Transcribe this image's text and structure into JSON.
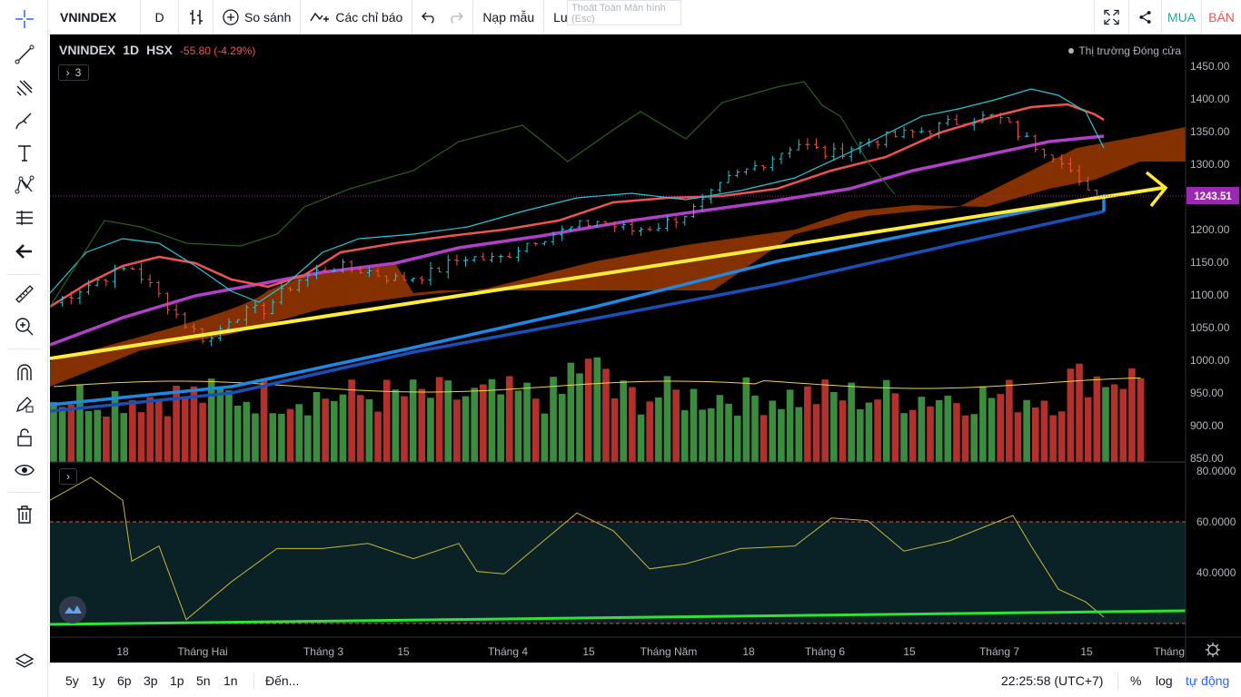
{
  "toolbar": {
    "symbol": "VNINDEX",
    "interval": "D",
    "compare": "So sánh",
    "indicators": "Các chỉ báo",
    "load_template": "Nạp mẫu",
    "save": "Lưu mẫu",
    "fullscreen_tip": "Thoát Toàn Màn hình",
    "fullscreen_tip_key": "(Esc)",
    "buy": "MUA",
    "sell": "BÁN"
  },
  "legend": {
    "symbol": "VNINDEX",
    "interval": "1D",
    "exchange": "HSX",
    "change": "-55.80 (-4.29%)",
    "collapse_count": "3",
    "market_status": "Thị trường Đóng cửa"
  },
  "price_axis": {
    "ticks": [
      "1450.00",
      "1400.00",
      "1350.00",
      "1300.00",
      "1250.00",
      "1200.00",
      "1150.00",
      "1100.00",
      "1050.00",
      "1000.00",
      "950.00",
      "900.00",
      "850.00"
    ],
    "current_price": "1243.51",
    "rsi_ticks": [
      "80.0000",
      "60.0000",
      "40.0000"
    ]
  },
  "time_axis": [
    "18",
    "Tháng Hai",
    "Tháng 3",
    "15",
    "Tháng 4",
    "15",
    "Tháng Năm",
    "18",
    "Tháng 6",
    "15",
    "Tháng 7",
    "15",
    "Tháng"
  ],
  "bottom": {
    "ranges": [
      "5y",
      "1y",
      "6p",
      "3p",
      "1p",
      "5n",
      "1n"
    ],
    "goto": "Đến...",
    "clock": "22:25:58 (UTC+7)",
    "percent": "%",
    "log": "log",
    "auto": "tự động"
  },
  "colors": {
    "up": "#3b8c3e",
    "down": "#b3312c",
    "cloud": "#8b3300",
    "trendline": "#ffeb3b",
    "ma_fast": "#26c6da",
    "ma_red": "#ef5350",
    "ma_purple": "#b040c8",
    "ma_blue": "#1e88e5",
    "ma_navy": "#1a4fb8",
    "lagging": "#2e5e1e",
    "price_tag": "#9c27b0",
    "buy": "#26a69a",
    "sell": "#ef5350"
  }
}
